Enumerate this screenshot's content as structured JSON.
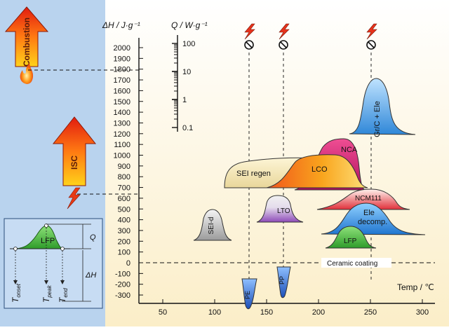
{
  "axes": {
    "dh_label": "ΔH / J·g⁻¹",
    "q_label": "Q / W·g⁻¹",
    "temp_label": "Temp / ℃",
    "dh_ticks": [
      "2000",
      "1900",
      "1800",
      "1700",
      "1600",
      "1500",
      "1400",
      "1300",
      "1200",
      "1100",
      "1000",
      "900",
      "800",
      "700",
      "600",
      "500",
      "400",
      "300",
      "200",
      "100",
      "0",
      "-100",
      "-200",
      "-300"
    ],
    "temp_ticks": [
      "50",
      "100",
      "150",
      "200",
      "250",
      "300"
    ],
    "q_ticks": [
      "100",
      "10",
      "1",
      "0.1"
    ]
  },
  "left_panel": {
    "combustion": "Combustion",
    "isc": "ISC",
    "inset": {
      "peak_label": "LFP",
      "q": "Q",
      "dh": "ΔH",
      "t_onset": "T",
      "t_onset_sub": "onset",
      "t_peak": "T",
      "t_peak_sub": "peak",
      "t_end": "T",
      "t_end_sub": "end"
    }
  },
  "peaks": {
    "sei_d": "SEI-d",
    "sei_regen": "SEI regen",
    "lco": "LCO",
    "nca": "NCA",
    "gr_c_ele": "Gr/C + Ele",
    "lto": "LTO",
    "ncm111": "NCM111",
    "ele_decomp_1": "Ele",
    "ele_decomp_2": "decomp.",
    "lfp": "LFP",
    "pe": "PE",
    "pp": "PP",
    "ceramic": "Ceramic coating"
  },
  "colors": {
    "background_panel": "#b9d3ee",
    "chart_bg": "#fdf4da",
    "gr_c": "#5aa7e6",
    "nca": "#d61e78",
    "lco": "#f7a21a",
    "lto": "#a86fc2",
    "ncm": "#e64b4b",
    "ele": "#2f8fe0",
    "lfp": "#55c244",
    "sep": "#2a6cd6"
  }
}
